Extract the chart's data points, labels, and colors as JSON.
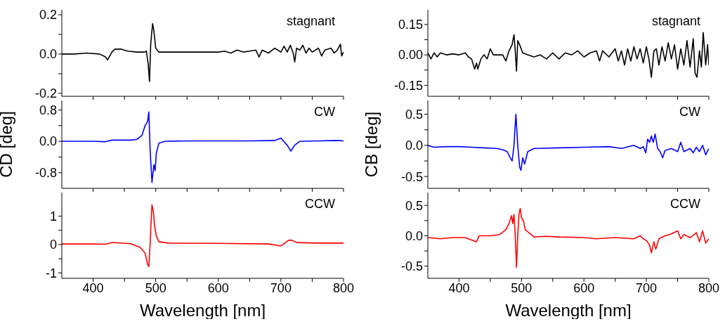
{
  "chart_data": [
    {
      "type": "line",
      "marker": "none",
      "line_style": "solid",
      "tick_labels": "y",
      "xlim": [
        350,
        800
      ],
      "xticks": [
        {
          "value": 400,
          "label": null
        },
        {
          "value": 450,
          "label": null
        },
        {
          "value": 500,
          "label": null
        },
        {
          "value": 550,
          "label": null
        },
        {
          "value": 600,
          "label": null
        },
        {
          "value": 650,
          "label": null
        },
        {
          "value": 700,
          "label": null
        },
        {
          "value": 750,
          "label": null
        },
        {
          "value": 800,
          "label": null
        }
      ],
      "ylim": [
        -0.215,
        0.225
      ],
      "yticks": [
        {
          "value": -0.2,
          "label": "-0.2"
        },
        {
          "value": -0.1,
          "label": null
        },
        {
          "value": 0,
          "label": "0.0"
        },
        {
          "value": 0.1,
          "label": null
        },
        {
          "value": 0.2,
          "label": "0.2"
        }
      ],
      "series": [
        {
          "name": "stagnant",
          "color": "#000000",
          "x": [
            350,
            370,
            390,
            410,
            420,
            423,
            430,
            435,
            445,
            455,
            470,
            482,
            485,
            488,
            490,
            492,
            495,
            497,
            500,
            505,
            520,
            540,
            560,
            580,
            600,
            610,
            620,
            630,
            640,
            650,
            660,
            665,
            670,
            680,
            690,
            700,
            705,
            710,
            715,
            720,
            722,
            725,
            730,
            735,
            740,
            745,
            750,
            760,
            765,
            770,
            780,
            785,
            790,
            795,
            797,
            800
          ],
          "values": [
            0,
            0,
            0.005,
            0,
            -0.015,
            -0.03,
            0.01,
            0.025,
            0.025,
            0.015,
            0.01,
            0.01,
            0.015,
            -0.05,
            -0.14,
            0.05,
            0.155,
            0.12,
            0.03,
            0.01,
            0.01,
            0.01,
            0.01,
            0.01,
            0.01,
            0.015,
            0.005,
            0.02,
            0.01,
            0.015,
            0.02,
            -0.015,
            0.02,
            0.005,
            0.03,
            0.01,
            0.04,
            0.01,
            0.045,
            0,
            -0.04,
            0.03,
            0.02,
            0.045,
            0.005,
            0.03,
            0.01,
            0.03,
            -0.01,
            0.02,
            0.03,
            0.005,
            0.02,
            0.05,
            -0.01,
            0.01
          ]
        }
      ]
    },
    {
      "type": "line",
      "marker": "none",
      "line_style": "solid",
      "tick_labels": "y",
      "xlim": [
        350,
        800
      ],
      "xticks": [
        {
          "value": 400,
          "label": null
        },
        {
          "value": 450,
          "label": null
        },
        {
          "value": 500,
          "label": null
        },
        {
          "value": 550,
          "label": null
        },
        {
          "value": 600,
          "label": null
        },
        {
          "value": 650,
          "label": null
        },
        {
          "value": 700,
          "label": null
        },
        {
          "value": 750,
          "label": null
        },
        {
          "value": 800,
          "label": null
        }
      ],
      "ylim": [
        -0.204,
        0.222
      ],
      "yticks": [
        {
          "value": -0.15,
          "label": "-0.15"
        },
        {
          "value": -0.075,
          "label": null
        },
        {
          "value": 0,
          "label": "0.00"
        },
        {
          "value": 0.075,
          "label": null
        },
        {
          "value": 0.15,
          "label": "0.15"
        }
      ],
      "series": [
        {
          "name": "stagnant",
          "color": "#000000",
          "x": [
            350,
            355,
            360,
            365,
            370,
            380,
            390,
            400,
            410,
            415,
            420,
            425,
            428,
            430,
            435,
            440,
            445,
            450,
            455,
            460,
            470,
            475,
            480,
            485,
            488,
            490,
            492,
            494,
            497,
            502,
            510,
            520,
            530,
            540,
            550,
            560,
            570,
            580,
            590,
            600,
            610,
            620,
            625,
            630,
            640,
            650,
            655,
            660,
            665,
            670,
            675,
            680,
            685,
            690,
            695,
            700,
            704,
            708,
            712,
            716,
            720,
            725,
            730,
            735,
            740,
            745,
            750,
            755,
            760,
            765,
            770,
            775,
            778,
            781,
            785,
            788,
            791,
            795,
            798,
            800
          ],
          "values": [
            0.01,
            -0.02,
            0.01,
            -0.01,
            0.01,
            0,
            0.005,
            0,
            0.01,
            -0.01,
            -0.02,
            -0.07,
            -0.04,
            -0.07,
            -0.02,
            0,
            -0.02,
            0.03,
            0,
            0,
            0,
            -0.03,
            0.02,
            0.05,
            0.1,
            0.02,
            -0.08,
            0.07,
            0.05,
            0.01,
            0,
            -0.01,
            0,
            -0.02,
            0.01,
            -0.02,
            0.01,
            0,
            0.02,
            -0.01,
            0.01,
            0.02,
            -0.03,
            0.02,
            -0.01,
            0.03,
            -0.03,
            0.02,
            -0.05,
            0.03,
            -0.03,
            0.04,
            -0.02,
            0.03,
            -0.04,
            0.04,
            -0.02,
            -0.11,
            0.02,
            0.03,
            -0.05,
            0.04,
            -0.03,
            0.06,
            -0.02,
            0.05,
            -0.07,
            0.03,
            -0.05,
            0.07,
            -0.06,
            0.08,
            -0.09,
            -0.11,
            0.02,
            -0.06,
            0.11,
            -0.05,
            0.05,
            -0.05
          ]
        }
      ]
    },
    {
      "type": "line",
      "marker": "none",
      "line_style": "solid",
      "tick_labels": "y",
      "ylabel": "CD [deg]",
      "xlim": [
        350,
        800
      ],
      "xticks": [
        {
          "value": 400,
          "label": null
        },
        {
          "value": 450,
          "label": null
        },
        {
          "value": 500,
          "label": null
        },
        {
          "value": 550,
          "label": null
        },
        {
          "value": 600,
          "label": null
        },
        {
          "value": 650,
          "label": null
        },
        {
          "value": 700,
          "label": null
        },
        {
          "value": 750,
          "label": null
        },
        {
          "value": 800,
          "label": null
        }
      ],
      "ylim": [
        -1.2,
        1.04
      ],
      "yticks": [
        {
          "value": -0.8,
          "label": "-0.8"
        },
        {
          "value": -0.4,
          "label": null
        },
        {
          "value": 0,
          "label": "0.0"
        },
        {
          "value": 0.4,
          "label": null
        },
        {
          "value": 0.8,
          "label": "0.8"
        }
      ],
      "series": [
        {
          "name": "CW",
          "color": "#0000ff",
          "x": [
            350,
            400,
            420,
            430,
            460,
            470,
            478,
            483,
            485,
            487,
            489,
            491,
            494,
            497,
            499,
            501,
            505,
            515,
            550,
            600,
            650,
            690,
            700,
            710,
            716,
            722,
            730,
            760,
            790,
            800
          ],
          "values": [
            0,
            0,
            -0.01,
            0.03,
            0.03,
            0.05,
            0.15,
            0.4,
            0.45,
            0.5,
            0.75,
            -0.2,
            -1.05,
            -0.6,
            -0.75,
            -0.3,
            -0.05,
            0,
            0.01,
            0.01,
            0.01,
            0.02,
            0.08,
            -0.1,
            -0.25,
            -0.1,
            0,
            0.01,
            0.02,
            0.01
          ]
        }
      ]
    },
    {
      "type": "line",
      "marker": "none",
      "line_style": "solid",
      "tick_labels": "y",
      "ylabel": "CB [deg]",
      "xlim": [
        350,
        800
      ],
      "xticks": [
        {
          "value": 400,
          "label": null
        },
        {
          "value": 450,
          "label": null
        },
        {
          "value": 500,
          "label": null
        },
        {
          "value": 550,
          "label": null
        },
        {
          "value": 600,
          "label": null
        },
        {
          "value": 650,
          "label": null
        },
        {
          "value": 700,
          "label": null
        },
        {
          "value": 750,
          "label": null
        },
        {
          "value": 800,
          "label": null
        }
      ],
      "ylim": [
        -0.69,
        0.72
      ],
      "yticks": [
        {
          "value": -0.5,
          "label": "-0.5"
        },
        {
          "value": -0.25,
          "label": null
        },
        {
          "value": 0,
          "label": "0.0"
        },
        {
          "value": 0.25,
          "label": null
        },
        {
          "value": 0.5,
          "label": "0.5"
        }
      ],
      "series": [
        {
          "name": "CW",
          "color": "#0000ff",
          "x": [
            350,
            360,
            380,
            400,
            420,
            440,
            460,
            470,
            477,
            482,
            485,
            488,
            491,
            494,
            497,
            499,
            502,
            505,
            510,
            520,
            560,
            600,
            640,
            660,
            680,
            690,
            695,
            699,
            702,
            705,
            708,
            711,
            714,
            718,
            722,
            726,
            730,
            740,
            750,
            755,
            760,
            770,
            775,
            780,
            785,
            790,
            795,
            800
          ],
          "values": [
            0,
            -0.03,
            -0.02,
            -0.02,
            -0.03,
            -0.04,
            -0.05,
            -0.07,
            -0.1,
            -0.2,
            -0.25,
            0,
            0.5,
            0,
            -0.35,
            -0.4,
            -0.2,
            -0.3,
            -0.1,
            -0.05,
            -0.04,
            -0.03,
            -0.02,
            -0.05,
            0,
            -0.05,
            -0.02,
            -0.12,
            0.1,
            0.05,
            0.15,
            0.05,
            0.18,
            -0.05,
            -0.1,
            -0.2,
            -0.08,
            -0.05,
            -0.1,
            0.05,
            -0.1,
            -0.05,
            -0.12,
            -0.03,
            -0.1,
            0,
            -0.15,
            -0.05
          ]
        }
      ]
    },
    {
      "type": "line",
      "marker": "none",
      "line_style": "solid",
      "xlabel": "Wavelength [nm]",
      "xlim": [
        350,
        800
      ],
      "xticks": [
        400,
        {
          "value": 450,
          "label": null
        },
        500,
        {
          "value": 550,
          "label": null
        },
        600,
        {
          "value": 650,
          "label": null
        },
        700,
        {
          "value": 750,
          "label": null
        },
        800
      ],
      "ylim": [
        -1.19,
        1.83
      ],
      "yticks": [
        {
          "value": -1,
          "label": "-1"
        },
        {
          "value": -0.5,
          "label": null
        },
        0,
        {
          "value": 0.5,
          "label": null
        },
        1
      ],
      "series": [
        {
          "name": "CCW",
          "color": "#ff0000",
          "x": [
            350,
            400,
            420,
            430,
            440,
            460,
            475,
            483,
            487,
            489,
            491,
            493,
            494,
            496,
            498,
            501,
            505,
            520,
            600,
            680,
            700,
            705,
            712,
            718,
            725,
            760,
            800
          ],
          "values": [
            0.02,
            0.02,
            0.01,
            0.07,
            0.06,
            0.03,
            -0.1,
            -0.3,
            -0.7,
            -0.78,
            0,
            1,
            1.4,
            1.2,
            0.7,
            0.3,
            0.1,
            0.05,
            0.04,
            0.02,
            -0.05,
            0.03,
            0.15,
            0.15,
            0.07,
            0.05,
            0.05
          ]
        }
      ]
    },
    {
      "type": "line",
      "marker": "none",
      "line_style": "solid",
      "xlabel": "Wavelength [nm]",
      "xlim": [
        350,
        800
      ],
      "xticks": [
        400,
        {
          "value": 450,
          "label": null
        },
        500,
        {
          "value": 550,
          "label": null
        },
        600,
        {
          "value": 650,
          "label": null
        },
        700,
        {
          "value": 750,
          "label": null
        },
        800
      ],
      "ylim": [
        -0.7,
        0.71
      ],
      "yticks": [
        {
          "value": -0.5,
          "label": "-0.5"
        },
        {
          "value": -0.25,
          "label": null
        },
        {
          "value": 0,
          "label": "0.0"
        },
        {
          "value": 0.25,
          "label": null
        },
        {
          "value": 0.5,
          "label": "0.5"
        }
      ],
      "series": [
        {
          "name": "CCW",
          "color": "#ff0000",
          "x": [
            350,
            370,
            390,
            410,
            420,
            428,
            432,
            450,
            465,
            475,
            480,
            484,
            486,
            488,
            490,
            492,
            494,
            496,
            498,
            500,
            503,
            506,
            512,
            520,
            540,
            560,
            600,
            620,
            650,
            680,
            690,
            695,
            700,
            705,
            708,
            712,
            715,
            720,
            730,
            740,
            750,
            755,
            760,
            770,
            780,
            785,
            790,
            795,
            800
          ],
          "values": [
            -0.03,
            -0.05,
            -0.03,
            -0.03,
            -0.07,
            -0.1,
            0,
            0,
            0.02,
            0.1,
            0.2,
            0.33,
            0.2,
            0.35,
            0,
            -0.52,
            0,
            0.35,
            0.45,
            0.3,
            0.25,
            0.1,
            0.05,
            -0.02,
            -0.01,
            -0.02,
            -0.03,
            -0.05,
            -0.03,
            -0.05,
            0,
            -0.05,
            -0.08,
            -0.15,
            -0.28,
            -0.1,
            -0.22,
            -0.05,
            0,
            0.03,
            0.08,
            -0.05,
            0.02,
            -0.03,
            0.05,
            -0.1,
            0.08,
            -0.12,
            -0.05
          ]
        }
      ]
    }
  ]
}
